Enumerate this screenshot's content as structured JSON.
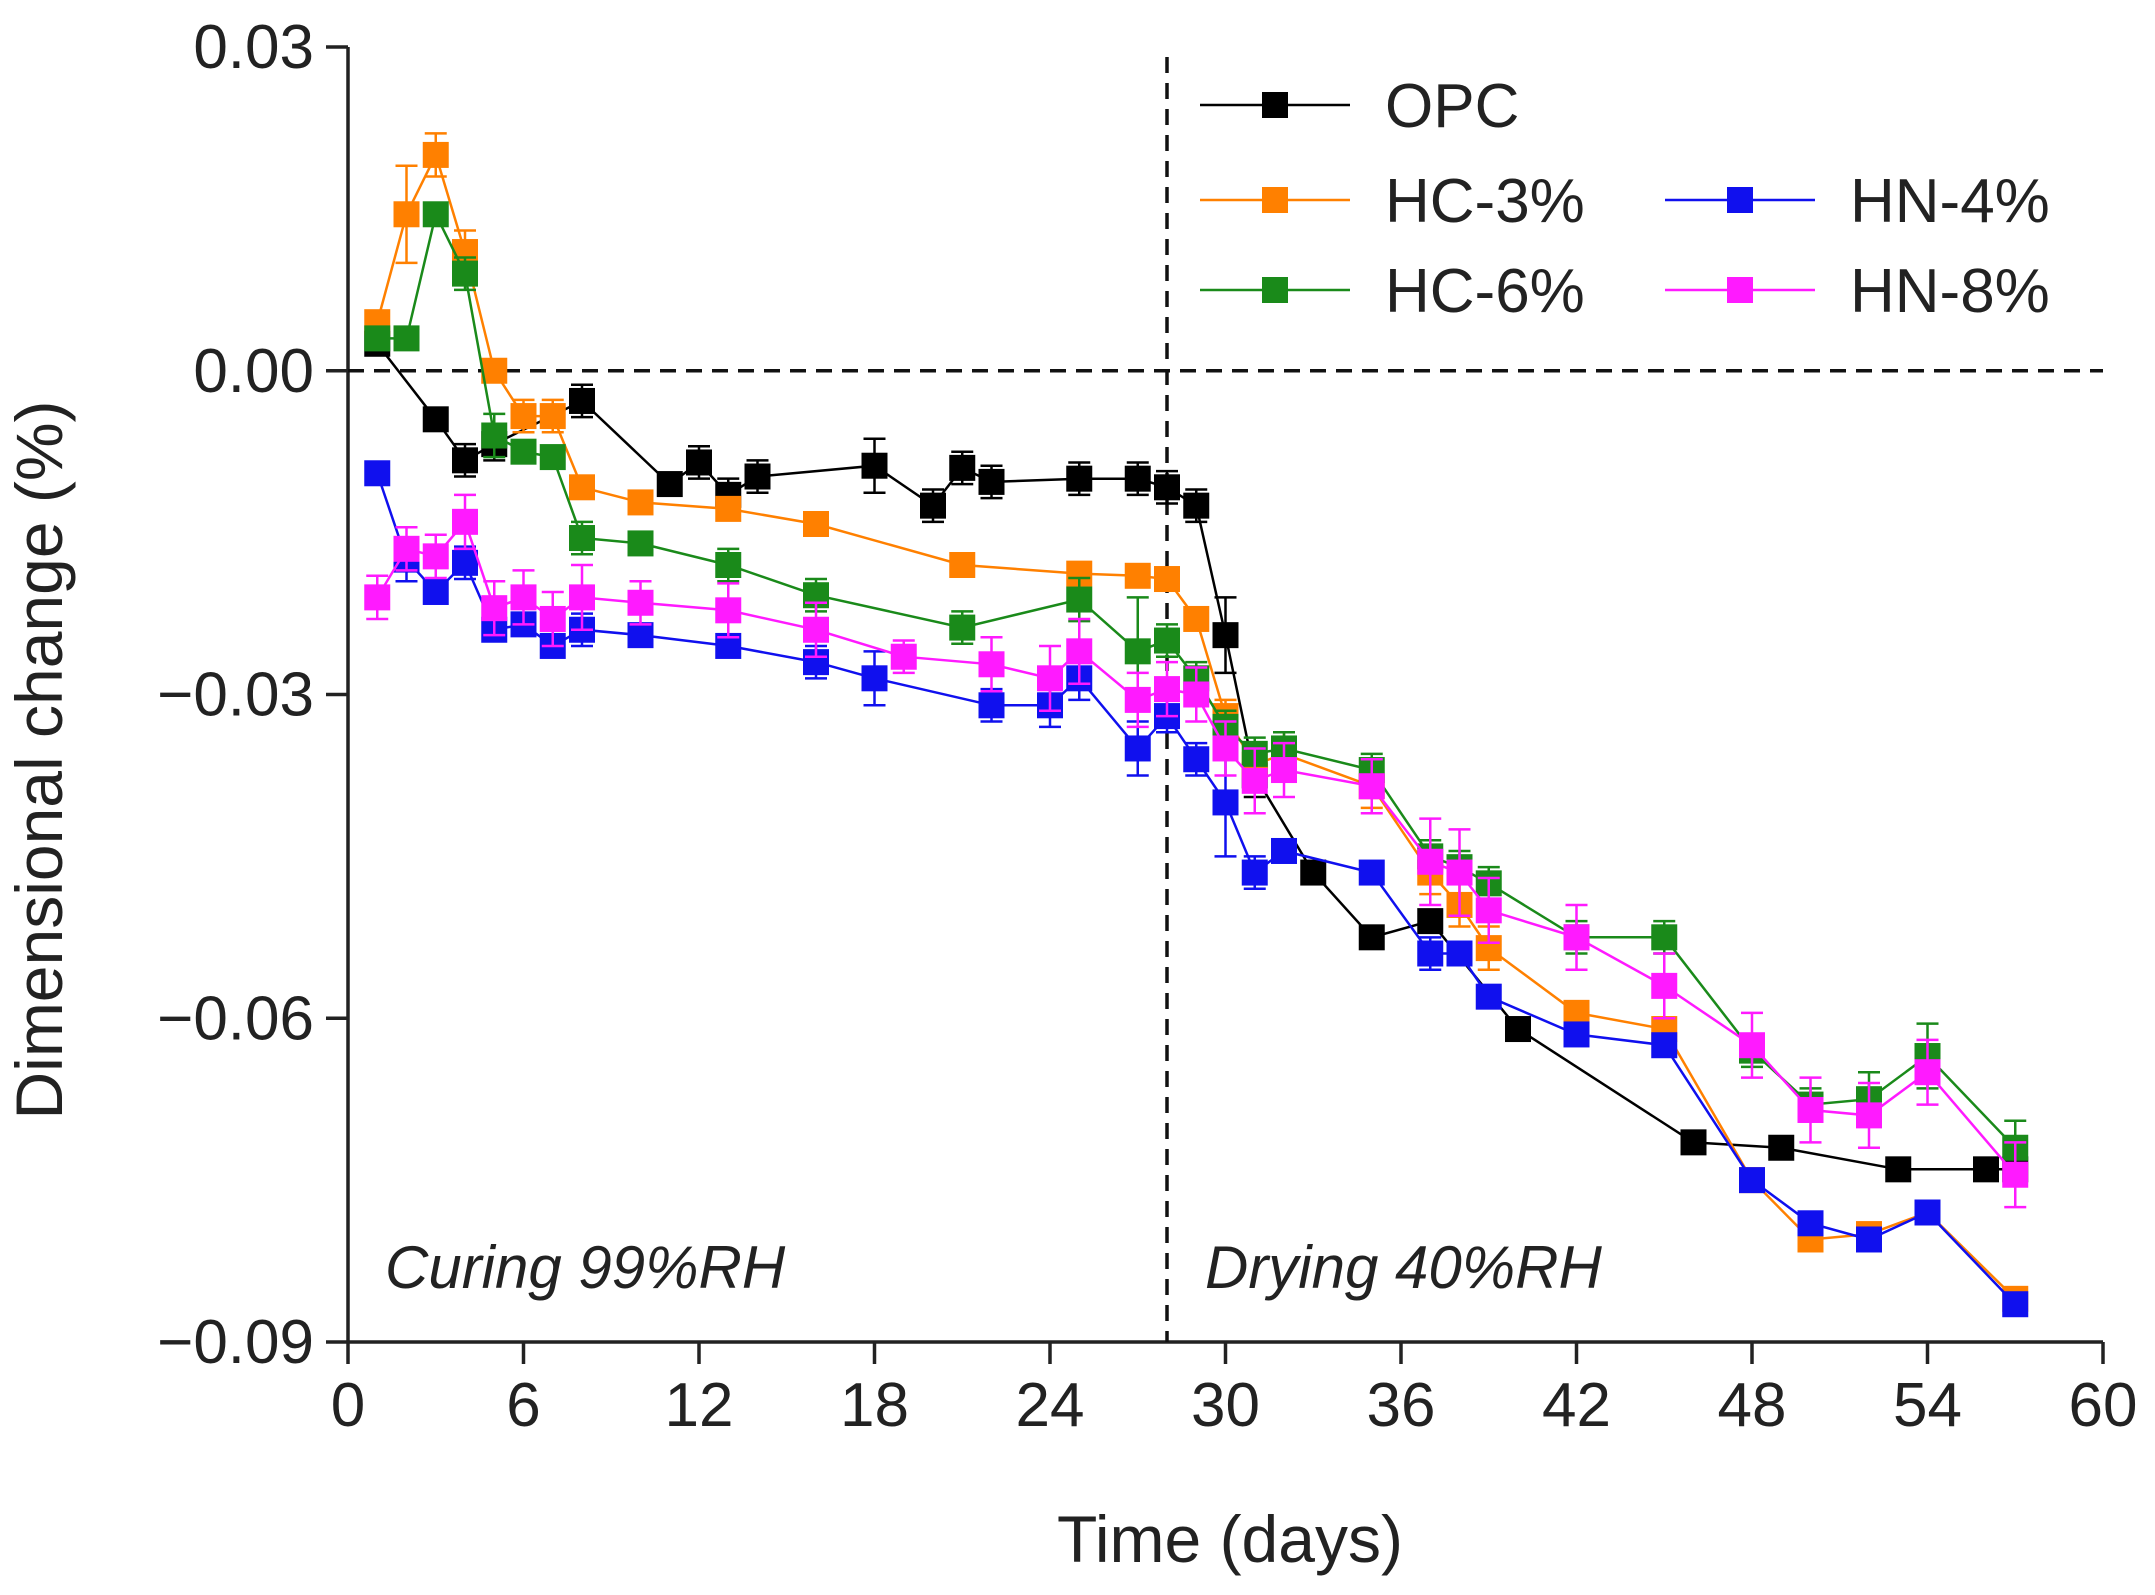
{
  "chart_data": {
    "type": "line",
    "title": "",
    "xlabel": "Time (days)",
    "ylabel": "Dimensional change (%)",
    "xlim": [
      0,
      60
    ],
    "ylim": [
      -0.09,
      0.03
    ],
    "xticks": [
      0,
      6,
      12,
      18,
      24,
      30,
      36,
      42,
      48,
      54,
      60
    ],
    "xtick_labels": [
      "0",
      "6",
      "12",
      "18",
      "24",
      "30",
      "36",
      "42",
      "48",
      "54",
      "60"
    ],
    "yticks": [
      0.03,
      0.0,
      -0.03,
      -0.06,
      -0.09
    ],
    "ytick_labels": [
      "0.03",
      "0.00",
      "−0.03",
      "−0.06",
      "−0.09"
    ],
    "grid": false,
    "legend_position": "top-right",
    "reference_lines": {
      "horizontal_y": 0.0,
      "vertical_x": 28
    },
    "annotations": [
      "Curing 99%RH",
      "Drying 40%RH"
    ],
    "series": [
      {
        "name": "OPC",
        "color": "#000000",
        "x": [
          1,
          3,
          4,
          5,
          8,
          11,
          12,
          13,
          14,
          18,
          20,
          21,
          22,
          25,
          27,
          28,
          29,
          30,
          31,
          33,
          35,
          37,
          40,
          46,
          49,
          53,
          56,
          57
        ],
        "y": [
          0.0025,
          -0.0045,
          -0.0083,
          -0.0068,
          -0.0028,
          -0.0105,
          -0.0085,
          -0.0115,
          -0.0098,
          -0.0088,
          -0.0125,
          -0.009,
          -0.0103,
          -0.01,
          -0.01,
          -0.0108,
          -0.0125,
          -0.0245,
          -0.0375,
          -0.0465,
          -0.0525,
          -0.051,
          -0.061,
          -0.0715,
          -0.072,
          -0.074,
          -0.074,
          -0.074
        ],
        "err": [
          0.001,
          0.001,
          0.0015,
          0.0015,
          0.0015,
          0.001,
          0.0015,
          0.0015,
          0.0015,
          0.0025,
          0.0015,
          0.0015,
          0.0015,
          0.0015,
          0.0015,
          0.0015,
          0.0015,
          0.0035,
          0.002,
          0.001,
          0.001,
          0.001,
          0.001,
          0.001,
          0.001,
          0.001,
          0.001,
          0.001
        ]
      },
      {
        "name": "HC-3%",
        "color": "#ff8000",
        "x": [
          1,
          2,
          3,
          4,
          5,
          6,
          7,
          8,
          10,
          13,
          16,
          21,
          25,
          27,
          28,
          29,
          30,
          31,
          32,
          35,
          37,
          38,
          39,
          42,
          45,
          48,
          50,
          52,
          54,
          57
        ],
        "y": [
          0.0045,
          0.0145,
          0.02,
          0.011,
          0.0,
          -0.0042,
          -0.0042,
          -0.0108,
          -0.0122,
          -0.0128,
          -0.0142,
          -0.018,
          -0.0188,
          -0.019,
          -0.0193,
          -0.023,
          -0.032,
          -0.0365,
          -0.0355,
          -0.0385,
          -0.0465,
          -0.0495,
          -0.0535,
          -0.0595,
          -0.061,
          -0.075,
          -0.0805,
          -0.08,
          -0.078,
          -0.086
        ],
        "err": [
          0.001,
          0.0045,
          0.002,
          0.002,
          0.001,
          0.0015,
          0.0015,
          0.001,
          0.001,
          0.001,
          0.001,
          0.001,
          0.001,
          0.001,
          0.001,
          0.001,
          0.0015,
          0.002,
          0.002,
          0.002,
          0.002,
          0.002,
          0.002,
          0.001,
          0.001,
          0.001,
          0.001,
          0.001,
          0.001,
          0.001
        ]
      },
      {
        "name": "HC-6%",
        "color": "#1a8a1a",
        "x": [
          1,
          2,
          3,
          4,
          5,
          6,
          7,
          8,
          10,
          13,
          16,
          21,
          25,
          27,
          28,
          29,
          30,
          31,
          32,
          35,
          37,
          38,
          39,
          42,
          45,
          48,
          50,
          52,
          54,
          57
        ],
        "y": [
          0.003,
          0.003,
          0.0145,
          0.009,
          -0.006,
          -0.0075,
          -0.008,
          -0.0155,
          -0.016,
          -0.018,
          -0.0208,
          -0.0238,
          -0.0212,
          -0.026,
          -0.025,
          -0.0285,
          -0.033,
          -0.0355,
          -0.035,
          -0.037,
          -0.045,
          -0.046,
          -0.0475,
          -0.0525,
          -0.0525,
          -0.063,
          -0.068,
          -0.0675,
          -0.0635,
          -0.072
        ],
        "err": [
          0.001,
          0.001,
          0.001,
          0.0015,
          0.002,
          0.001,
          0.001,
          0.0015,
          0.001,
          0.0015,
          0.0015,
          0.0015,
          0.002,
          0.005,
          0.0015,
          0.0015,
          0.0015,
          0.0015,
          0.0015,
          0.0015,
          0.0015,
          0.0015,
          0.0015,
          0.0015,
          0.0015,
          0.0015,
          0.0015,
          0.0025,
          0.003,
          0.0025
        ]
      },
      {
        "name": "HN-4%",
        "color": "#1010ee",
        "x": [
          1,
          2,
          3,
          4,
          5,
          6,
          7,
          8,
          10,
          13,
          16,
          18,
          22,
          24,
          25,
          27,
          28,
          29,
          30,
          31,
          32,
          35,
          37,
          38,
          39,
          42,
          45,
          48,
          50,
          52,
          54,
          57
        ],
        "y": [
          -0.0095,
          -0.0175,
          -0.0205,
          -0.0178,
          -0.024,
          -0.0235,
          -0.0255,
          -0.024,
          -0.0245,
          -0.0255,
          -0.027,
          -0.0285,
          -0.031,
          -0.031,
          -0.0285,
          -0.035,
          -0.032,
          -0.036,
          -0.04,
          -0.0465,
          -0.0445,
          -0.0465,
          -0.054,
          -0.054,
          -0.058,
          -0.0615,
          -0.0625,
          -0.075,
          -0.079,
          -0.0805,
          -0.078,
          -0.0865
        ],
        "err": [
          0.001,
          0.002,
          0.001,
          0.0015,
          0.001,
          0.001,
          0.001,
          0.0015,
          0.001,
          0.001,
          0.0015,
          0.0025,
          0.0015,
          0.002,
          0.002,
          0.0025,
          0.0015,
          0.0015,
          0.005,
          0.0015,
          0.001,
          0.001,
          0.0015,
          0.001,
          0.001,
          0.001,
          0.001,
          0.001,
          0.001,
          0.001,
          0.001,
          0.001
        ]
      },
      {
        "name": "HN-8%",
        "color": "#ff1aff",
        "x": [
          1,
          2,
          3,
          4,
          5,
          6,
          7,
          8,
          10,
          13,
          16,
          19,
          22,
          24,
          25,
          27,
          28,
          29,
          30,
          31,
          32,
          35,
          37,
          38,
          39,
          42,
          45,
          48,
          50,
          52,
          54,
          57
        ],
        "y": [
          -0.021,
          -0.0165,
          -0.0172,
          -0.014,
          -0.022,
          -0.021,
          -0.023,
          -0.021,
          -0.0215,
          -0.0222,
          -0.024,
          -0.0265,
          -0.0272,
          -0.0285,
          -0.026,
          -0.0305,
          -0.0295,
          -0.03,
          -0.035,
          -0.038,
          -0.037,
          -0.0385,
          -0.0455,
          -0.0465,
          -0.05,
          -0.0525,
          -0.057,
          -0.0625,
          -0.0685,
          -0.069,
          -0.065,
          -0.0745
        ],
        "err": [
          0.002,
          0.002,
          0.002,
          0.0025,
          0.0025,
          0.0025,
          0.0025,
          0.003,
          0.002,
          0.0025,
          0.0025,
          0.0015,
          0.0025,
          0.003,
          0.003,
          0.0025,
          0.0025,
          0.0025,
          0.0025,
          0.003,
          0.0025,
          0.0025,
          0.004,
          0.004,
          0.003,
          0.003,
          0.003,
          0.003,
          0.003,
          0.003,
          0.003,
          0.003
        ]
      }
    ]
  }
}
